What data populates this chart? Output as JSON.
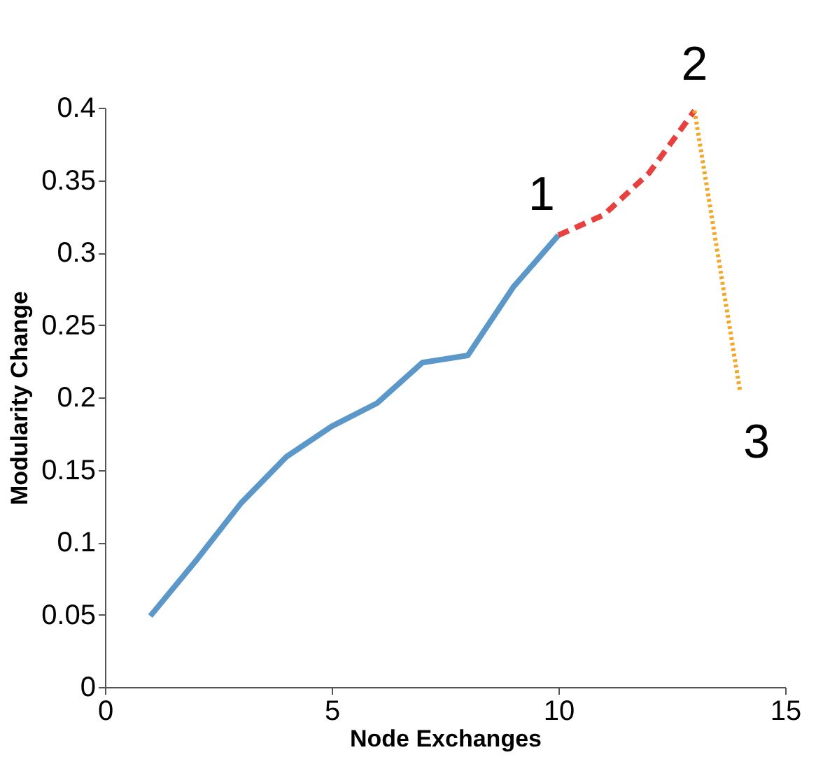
{
  "chart_data": {
    "type": "line",
    "xlabel": "Node Exchanges",
    "ylabel": "Modularity Change",
    "xlim": [
      0,
      15
    ],
    "xticks": [
      0,
      5,
      10,
      15
    ],
    "ylim": [
      0,
      0.4
    ],
    "yticks": [
      0,
      0.05,
      0.1,
      0.15,
      0.2,
      0.25,
      0.3,
      0.35,
      0.4
    ],
    "grid": false,
    "marker": "none",
    "series": [
      {
        "color": "#5b97c9",
        "line_style": "solid",
        "x": [
          1,
          2,
          3,
          4,
          5,
          6,
          7,
          8,
          9,
          10
        ],
        "values": [
          0.049,
          0.087,
          0.127,
          0.159,
          0.18,
          0.196,
          0.224,
          0.229,
          0.276,
          0.312
        ]
      },
      {
        "color": "#e8403f",
        "line_style": "dashed",
        "x": [
          10,
          11,
          12,
          13
        ],
        "values": [
          0.312,
          0.326,
          0.355,
          0.398
        ]
      },
      {
        "color": "#f5a623",
        "line_style": "dotted",
        "x": [
          13,
          14
        ],
        "values": [
          0.398,
          0.205
        ]
      }
    ],
    "annotations": [
      {
        "text": "1",
        "x": 10,
        "y": 0.312
      },
      {
        "text": "2",
        "x": 13,
        "y": 0.398
      },
      {
        "text": "3",
        "x": 14,
        "y": 0.205
      }
    ]
  }
}
